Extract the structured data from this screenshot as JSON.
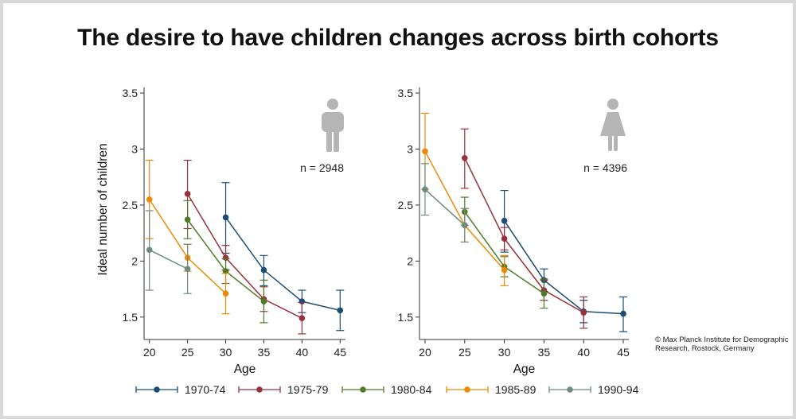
{
  "title": "The desire to have children changes across birth cohorts",
  "copyright": "© Max Planck Institute for Demographic Research, Rostock, Germany",
  "chart_data": {
    "type": "line",
    "xlabel": "Age",
    "ylabel": "Ideal number of children",
    "xticks": [
      20,
      25,
      30,
      35,
      40,
      45
    ],
    "yticks": [
      1.5,
      2,
      2.5,
      3,
      3.5
    ],
    "ytick_labels": [
      "1.5",
      "2",
      "2.5",
      "3",
      "3.5"
    ],
    "xlim": [
      19.3,
      45.7
    ],
    "ylim": [
      1.3,
      3.55
    ],
    "legend_position": "bottom",
    "legend": [
      {
        "name": "1970-74",
        "color": "#1b4c74"
      },
      {
        "name": "1975-79",
        "color": "#97323d"
      },
      {
        "name": "1980-84",
        "color": "#4f7a2a"
      },
      {
        "name": "1985-89",
        "color": "#ec8a07"
      },
      {
        "name": "1990-94",
        "color": "#6e8a81"
      }
    ],
    "panels": [
      {
        "panel": "men",
        "icon": "male-figure-icon",
        "n_label": "n = 2948",
        "series": [
          {
            "name": "1970-74",
            "color": "#1b4c74",
            "points": [
              {
                "x": 30,
                "y": 2.39,
                "lo": 2.07,
                "hi": 2.7
              },
              {
                "x": 35,
                "y": 1.92,
                "lo": 1.78,
                "hi": 2.05
              },
              {
                "x": 40,
                "y": 1.64,
                "lo": 1.54,
                "hi": 1.74
              },
              {
                "x": 45,
                "y": 1.56,
                "lo": 1.38,
                "hi": 1.74
              }
            ]
          },
          {
            "name": "1975-79",
            "color": "#97323d",
            "points": [
              {
                "x": 25,
                "y": 2.6,
                "lo": 2.29,
                "hi": 2.9
              },
              {
                "x": 30,
                "y": 2.03,
                "lo": 1.92,
                "hi": 2.14
              },
              {
                "x": 35,
                "y": 1.66,
                "lo": 1.55,
                "hi": 1.77
              },
              {
                "x": 40,
                "y": 1.49,
                "lo": 1.35,
                "hi": 1.63
              }
            ]
          },
          {
            "name": "1980-84",
            "color": "#4f7a2a",
            "points": [
              {
                "x": 25,
                "y": 2.37,
                "lo": 2.2,
                "hi": 2.54
              },
              {
                "x": 30,
                "y": 1.91,
                "lo": 1.8,
                "hi": 2.02
              },
              {
                "x": 35,
                "y": 1.64,
                "lo": 1.45,
                "hi": 1.83
              }
            ]
          },
          {
            "name": "1985-89",
            "color": "#ec8a07",
            "points": [
              {
                "x": 20,
                "y": 2.55,
                "lo": 2.2,
                "hi": 2.9
              },
              {
                "x": 25,
                "y": 2.03,
                "lo": 1.91,
                "hi": 2.15
              },
              {
                "x": 30,
                "y": 1.71,
                "lo": 1.53,
                "hi": 1.89
              }
            ]
          },
          {
            "name": "1990-94",
            "color": "#6e8a81",
            "points": [
              {
                "x": 20,
                "y": 2.1,
                "lo": 1.74,
                "hi": 2.45
              },
              {
                "x": 25,
                "y": 1.93,
                "lo": 1.71,
                "hi": 2.15
              }
            ]
          }
        ]
      },
      {
        "panel": "women",
        "icon": "female-figure-icon",
        "n_label": "n = 4396",
        "series": [
          {
            "name": "1970-74",
            "color": "#1b4c74",
            "points": [
              {
                "x": 30,
                "y": 2.36,
                "lo": 2.08,
                "hi": 2.63
              },
              {
                "x": 35,
                "y": 1.83,
                "lo": 1.73,
                "hi": 1.93
              },
              {
                "x": 40,
                "y": 1.55,
                "lo": 1.45,
                "hi": 1.65
              },
              {
                "x": 45,
                "y": 1.53,
                "lo": 1.37,
                "hi": 1.68
              }
            ]
          },
          {
            "name": "1975-79",
            "color": "#97323d",
            "points": [
              {
                "x": 25,
                "y": 2.92,
                "lo": 2.65,
                "hi": 3.18
              },
              {
                "x": 30,
                "y": 2.2,
                "lo": 2.1,
                "hi": 2.3
              },
              {
                "x": 35,
                "y": 1.74,
                "lo": 1.65,
                "hi": 1.83
              },
              {
                "x": 40,
                "y": 1.54,
                "lo": 1.4,
                "hi": 1.68
              }
            ]
          },
          {
            "name": "1980-84",
            "color": "#4f7a2a",
            "points": [
              {
                "x": 25,
                "y": 2.44,
                "lo": 2.32,
                "hi": 2.57
              },
              {
                "x": 30,
                "y": 1.95,
                "lo": 1.86,
                "hi": 2.04
              },
              {
                "x": 35,
                "y": 1.71,
                "lo": 1.58,
                "hi": 1.84
              }
            ]
          },
          {
            "name": "1985-89",
            "color": "#ec8a07",
            "points": [
              {
                "x": 20,
                "y": 2.98,
                "lo": 2.64,
                "hi": 3.32
              },
              {
                "x": 25,
                "y": 2.32,
                "lo": 2.17,
                "hi": 2.47
              },
              {
                "x": 30,
                "y": 1.92,
                "lo": 1.78,
                "hi": 2.05
              }
            ]
          },
          {
            "name": "1990-94",
            "color": "#6e8a81",
            "points": [
              {
                "x": 20,
                "y": 2.64,
                "lo": 2.41,
                "hi": 2.87
              },
              {
                "x": 25,
                "y": 2.32,
                "lo": 2.17,
                "hi": 2.47
              }
            ]
          }
        ]
      }
    ]
  }
}
